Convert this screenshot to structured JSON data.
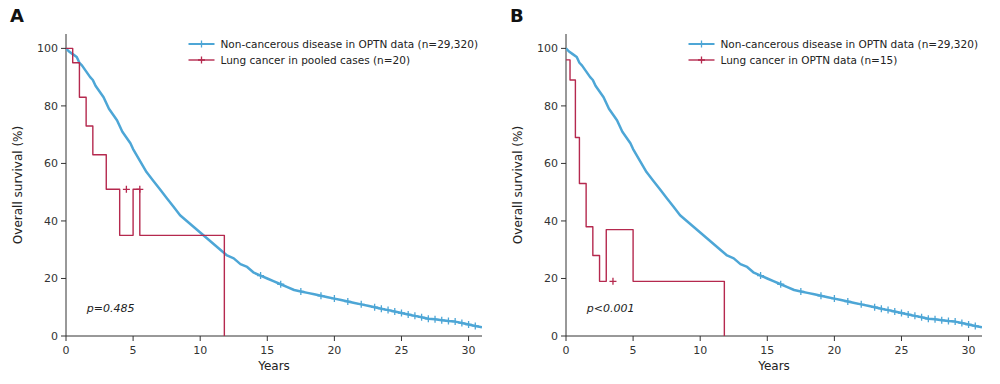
{
  "chart_data": [
    {
      "type": "line",
      "title": "A",
      "xlabel": "Years",
      "ylabel": "Overall survival (%)",
      "xlim": [
        0,
        31
      ],
      "ylim": [
        0,
        105
      ],
      "xticks": [
        0,
        5,
        10,
        15,
        20,
        25,
        30
      ],
      "yticks": [
        0,
        20,
        40,
        60,
        80,
        100
      ],
      "grid": false,
      "legend": "upper right",
      "annotations": [
        {
          "text": "p=0.485"
        }
      ],
      "series": [
        {
          "name": "Non-cancerous disease in OPTN data (n=29,320)",
          "type": "line",
          "color": "#4da6d6",
          "x": [
            0,
            0.2,
            0.5,
            0.8,
            1.0,
            1.2,
            1.5,
            1.8,
            2.0,
            2.2,
            2.5,
            2.8,
            3.0,
            3.2,
            3.5,
            3.8,
            4.0,
            4.2,
            4.5,
            4.8,
            5.0,
            5.5,
            6.0,
            6.5,
            7.0,
            7.5,
            8.0,
            8.5,
            9.0,
            9.5,
            10.0,
            10.5,
            11.0,
            11.5,
            12.0,
            12.5,
            13.0,
            13.5,
            14.0,
            14.5,
            15.0,
            15.5,
            16.0,
            16.5,
            17.0,
            17.5,
            18.0,
            18.5,
            19.0,
            19.5,
            20.0,
            20.5,
            21.0,
            21.5,
            22.0,
            22.5,
            23.0,
            23.5,
            24.0,
            24.5,
            25.0,
            25.5,
            26.0,
            26.5,
            27.0,
            27.5,
            28.0,
            28.5,
            29.0,
            29.5,
            30.0,
            30.5,
            31.0
          ],
          "values": [
            100,
            99,
            98,
            97,
            95,
            94,
            92,
            90,
            89,
            87,
            85,
            83,
            81,
            79,
            77,
            75,
            73,
            71,
            69,
            67,
            65,
            61,
            57,
            54,
            51,
            48,
            45,
            42,
            40,
            38,
            36,
            34,
            32,
            30,
            28,
            27,
            25,
            24,
            22,
            21,
            20,
            19,
            18,
            17,
            16,
            15.5,
            15,
            14.5,
            14,
            13.5,
            13,
            12.5,
            12,
            11.5,
            11,
            10.5,
            10,
            9.5,
            9,
            8.5,
            8,
            7.5,
            7,
            6.5,
            6,
            5.8,
            5.5,
            5.2,
            5.0,
            4.5,
            4.0,
            3.5,
            3.0
          ]
        },
        {
          "type": "scatter",
          "marker": "plus",
          "color": "#4da6d6",
          "x": [
            14.5,
            16.0,
            17.5,
            19.0,
            20.0,
            21.0,
            22.0,
            23.0,
            23.5,
            24.0,
            24.5,
            25.0,
            25.5,
            26.0,
            26.5,
            27.0,
            27.5,
            28.0,
            28.5,
            29.0,
            29.5,
            30.0,
            30.5
          ],
          "values": [
            21,
            18,
            15.5,
            14,
            13,
            12,
            11,
            10,
            9.5,
            9,
            8.5,
            8,
            7.5,
            7,
            6.5,
            6,
            5.8,
            5.5,
            5.2,
            5.0,
            4.5,
            4.0,
            3.5
          ]
        },
        {
          "name": "Lung cancer in pooled cases (n=20)",
          "type": "step",
          "color": "#b5294e",
          "x": [
            0,
            0.5,
            0.5,
            1.0,
            1.0,
            1.5,
            1.5,
            2.0,
            2.0,
            3.0,
            3.0,
            4.0,
            4.0,
            5.0,
            5.0,
            5.5,
            5.5,
            6.5,
            6.5,
            7.0,
            7.0,
            8.0,
            8.0,
            11.8,
            11.8
          ],
          "values": [
            100,
            100,
            95,
            95,
            83,
            83,
            73,
            73,
            63,
            63,
            51,
            51,
            35,
            35,
            51,
            51,
            35,
            35,
            35,
            35,
            35,
            35,
            35,
            35,
            0
          ]
        },
        {
          "type": "scatter",
          "marker": "plus",
          "color": "#b5294e",
          "x": [
            4.5,
            5.5
          ],
          "values": [
            51,
            51
          ]
        }
      ]
    },
    {
      "type": "line",
      "title": "B",
      "xlabel": "Years",
      "ylabel": "Overall survival (%)",
      "xlim": [
        0,
        31
      ],
      "ylim": [
        0,
        105
      ],
      "xticks": [
        0,
        5,
        10,
        15,
        20,
        25,
        30
      ],
      "yticks": [
        0,
        20,
        40,
        60,
        80,
        100
      ],
      "grid": false,
      "legend": "upper right",
      "annotations": [
        {
          "text": "p<0.001"
        }
      ],
      "series": [
        {
          "name": "Non-cancerous disease in OPTN data (n=29,320)",
          "type": "line",
          "color": "#4da6d6",
          "x": [
            0,
            0.2,
            0.5,
            0.8,
            1.0,
            1.2,
            1.5,
            1.8,
            2.0,
            2.2,
            2.5,
            2.8,
            3.0,
            3.2,
            3.5,
            3.8,
            4.0,
            4.2,
            4.5,
            4.8,
            5.0,
            5.5,
            6.0,
            6.5,
            7.0,
            7.5,
            8.0,
            8.5,
            9.0,
            9.5,
            10.0,
            10.5,
            11.0,
            11.5,
            12.0,
            12.5,
            13.0,
            13.5,
            14.0,
            14.5,
            15.0,
            15.5,
            16.0,
            16.5,
            17.0,
            17.5,
            18.0,
            18.5,
            19.0,
            19.5,
            20.0,
            20.5,
            21.0,
            21.5,
            22.0,
            22.5,
            23.0,
            23.5,
            24.0,
            24.5,
            25.0,
            25.5,
            26.0,
            26.5,
            27.0,
            27.5,
            28.0,
            28.5,
            29.0,
            29.5,
            30.0,
            30.5,
            31.0
          ],
          "values": [
            100,
            99,
            98,
            97,
            95,
            94,
            92,
            90,
            89,
            87,
            85,
            83,
            81,
            79,
            77,
            75,
            73,
            71,
            69,
            67,
            65,
            61,
            57,
            54,
            51,
            48,
            45,
            42,
            40,
            38,
            36,
            34,
            32,
            30,
            28,
            27,
            25,
            24,
            22,
            21,
            20,
            19,
            18,
            17,
            16,
            15.5,
            15,
            14.5,
            14,
            13.5,
            13,
            12.5,
            12,
            11.5,
            11,
            10.5,
            10,
            9.5,
            9,
            8.5,
            8,
            7.5,
            7,
            6.5,
            6,
            5.8,
            5.5,
            5.2,
            5.0,
            4.5,
            4.0,
            3.5,
            3.0
          ]
        },
        {
          "type": "scatter",
          "marker": "plus",
          "color": "#4da6d6",
          "x": [
            14.5,
            16.0,
            17.5,
            19.0,
            20.0,
            21.0,
            22.0,
            23.0,
            23.5,
            24.0,
            24.5,
            25.0,
            25.5,
            26.0,
            26.5,
            27.0,
            27.5,
            28.0,
            28.5,
            29.0,
            29.5,
            30.0,
            30.5
          ],
          "values": [
            21,
            18,
            15.5,
            14,
            13,
            12,
            11,
            10,
            9.5,
            9,
            8.5,
            8,
            7.5,
            7,
            6.5,
            6,
            5.8,
            5.5,
            5.2,
            5.0,
            4.5,
            4.0,
            3.5
          ]
        },
        {
          "name": "Lung cancer in OPTN data (n=15)",
          "type": "step",
          "color": "#b5294e",
          "x": [
            0,
            0.3,
            0.3,
            0.7,
            0.7,
            1.0,
            1.0,
            1.5,
            1.5,
            2.0,
            2.0,
            2.5,
            2.5,
            3.0,
            3.0,
            5.0,
            5.0,
            5.5,
            5.5,
            10.0,
            10.0,
            11.8,
            11.8
          ],
          "values": [
            96,
            96,
            89,
            89,
            69,
            69,
            53,
            53,
            38,
            38,
            28,
            28,
            19,
            19,
            37,
            37,
            19,
            19,
            19,
            19,
            19,
            19,
            0
          ]
        },
        {
          "type": "scatter",
          "marker": "plus",
          "color": "#b5294e",
          "x": [
            3.5
          ],
          "values": [
            19
          ]
        }
      ]
    }
  ]
}
